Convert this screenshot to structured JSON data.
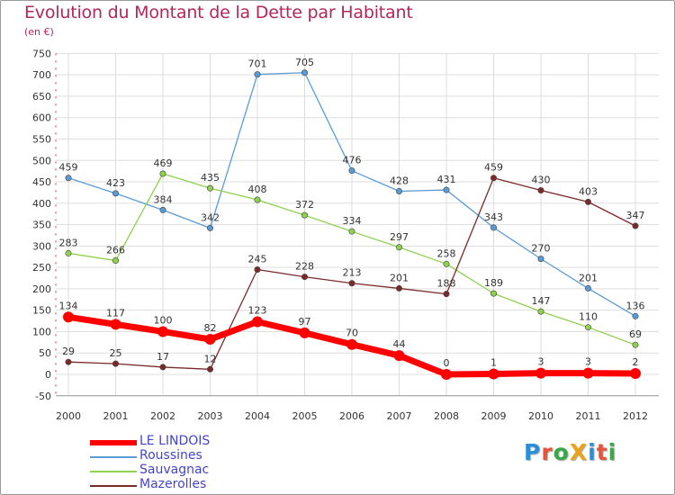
{
  "title": "Evolution du Montant de la Dette par Habitant",
  "subtitle": "(en €)",
  "logo": {
    "text": "ProXiti",
    "letter_colors": [
      "#2a8fd6",
      "#e8543a",
      "#3aa84a",
      "#e8a51a",
      "#2a8fd6",
      "#e8543a",
      "#3aa84a"
    ]
  },
  "chart_data": {
    "type": "line",
    "categories": [
      "2000",
      "2001",
      "2002",
      "2003",
      "2004",
      "2005",
      "2006",
      "2007",
      "2008",
      "2009",
      "2010",
      "2011",
      "2012"
    ],
    "ylim": [
      -50,
      750
    ],
    "yticks": [
      -50,
      0,
      50,
      100,
      150,
      200,
      250,
      300,
      350,
      400,
      450,
      500,
      550,
      600,
      650,
      700,
      750
    ],
    "grid": true,
    "legend_position": "bottom-left",
    "series": [
      {
        "name": "Roussines",
        "color": "#5b9bd5",
        "values": [
          459,
          423,
          384,
          342,
          701,
          705,
          476,
          428,
          431,
          343,
          270,
          201,
          136
        ]
      },
      {
        "name": "Sauvagnac",
        "color": "#8fd14f",
        "values": [
          283,
          266,
          469,
          435,
          408,
          372,
          334,
          297,
          258,
          189,
          147,
          110,
          69
        ]
      },
      {
        "name": "Mazerolles",
        "color": "#7a2a2a",
        "values": [
          29,
          25,
          17,
          12,
          245,
          228,
          213,
          201,
          188,
          459,
          430,
          403,
          347
        ]
      },
      {
        "name": "LE LINDOIS",
        "color": "#ff0000",
        "highlight": true,
        "values": [
          134,
          117,
          100,
          82,
          123,
          97,
          70,
          44,
          0,
          1,
          3,
          3,
          2
        ]
      }
    ],
    "legend_order": [
      "LE LINDOIS",
      "Roussines",
      "Sauvagnac",
      "Mazerolles"
    ]
  }
}
